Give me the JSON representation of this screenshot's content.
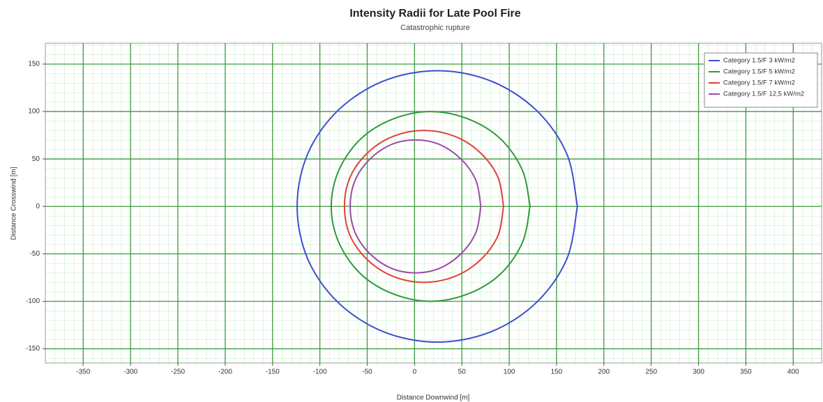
{
  "chart_data": {
    "type": "line",
    "title": "Intensity Radii for Late Pool Fire",
    "subtitle": "Catastrophic rupture",
    "xlabel": "Distance Downwind [m]",
    "ylabel": "Distance Crosswind [m]",
    "xlim": [
      -390,
      430
    ],
    "ylim": [
      -165,
      172
    ],
    "xticks": [
      -350,
      -300,
      -250,
      -200,
      -150,
      -100,
      -50,
      0,
      50,
      100,
      150,
      200,
      250,
      300,
      350,
      400
    ],
    "yticks": [
      -150,
      -100,
      -50,
      0,
      50,
      100,
      150
    ],
    "grid": true,
    "legend": "upper right",
    "series": [
      {
        "name": "Category 1.5/F 3 kW/m2",
        "color": "#3a4fd0",
        "x": [
          172,
          161,
          129,
          81,
          24,
          -33,
          -81,
          -113,
          -124,
          -113,
          -81,
          -33,
          24,
          81,
          129,
          161,
          172
        ],
        "values": [
          0,
          55,
          101,
          132,
          143,
          132,
          101,
          55,
          0,
          -55,
          -101,
          -132,
          -143,
          -132,
          -101,
          -55,
          0
        ]
      },
      {
        "name": "Category 1.5/F 5 kW/m2",
        "color": "#2e9a3a",
        "x": [
          122,
          114,
          91,
          57,
          17,
          -23,
          -57,
          -80,
          -88,
          -80,
          -57,
          -23,
          17,
          57,
          91,
          114,
          122
        ],
        "values": [
          0,
          38,
          71,
          92,
          100,
          92,
          71,
          38,
          0,
          -38,
          -71,
          -92,
          -100,
          -92,
          -71,
          -38,
          0
        ]
      },
      {
        "name": "Category 1.5/F 7 kW/m2",
        "color": "#e0403a",
        "x": [
          94,
          88,
          69,
          42,
          10,
          -22,
          -49,
          -68,
          -74,
          -68,
          -49,
          -22,
          10,
          42,
          69,
          88,
          94
        ],
        "values": [
          0,
          31,
          57,
          74,
          80,
          74,
          57,
          31,
          0,
          -31,
          -57,
          -74,
          -80,
          -74,
          -57,
          -31,
          0
        ]
      },
      {
        "name": "Category 1.5/F 12,5 kW/m2",
        "color": "#9a4aa8",
        "x": [
          70,
          65,
          50,
          27,
          1,
          -25,
          -48,
          -63,
          -68,
          -63,
          -48,
          -25,
          1,
          27,
          50,
          65,
          70
        ],
        "values": [
          0,
          27,
          49,
          65,
          70,
          65,
          49,
          27,
          0,
          -27,
          -49,
          -65,
          -70,
          -65,
          -49,
          -27,
          0
        ]
      }
    ]
  }
}
